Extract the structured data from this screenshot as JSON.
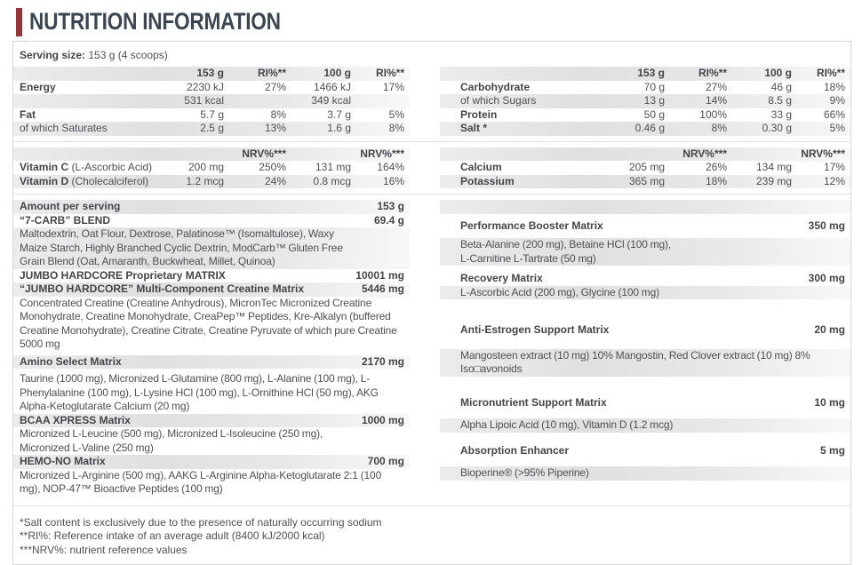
{
  "title": "NUTRITION INFORMATION",
  "accent_color": "#943338",
  "serving": {
    "label": "Serving size:",
    "value": "153 g (4 scoops)"
  },
  "facts": {
    "columns": [
      "153 g",
      "RI%**",
      "100 g",
      "RI%**"
    ],
    "left": [
      {
        "label": "Energy",
        "bold": true,
        "values": [
          "2230 kJ",
          "27%",
          "1466 kJ",
          "17%"
        ],
        "shaded": false
      },
      {
        "label": "",
        "bold": false,
        "values": [
          "531 kcal",
          "",
          "349 kcal",
          ""
        ],
        "shaded": true
      },
      {
        "label": "Fat",
        "bold": true,
        "values": [
          "5.7 g",
          "8%",
          "3.7 g",
          "5%"
        ],
        "shaded": false
      },
      {
        "label": "of which Saturates",
        "bold": false,
        "values": [
          "2.5 g",
          "13%",
          "1.6 g",
          "8%"
        ],
        "shaded": true
      }
    ],
    "right": [
      {
        "label": "Carbohydrate",
        "bold": true,
        "values": [
          "70 g",
          "27%",
          "46 g",
          "18%"
        ],
        "shaded": false
      },
      {
        "label": "of which Sugars",
        "bold": false,
        "values": [
          "13 g",
          "14%",
          "8.5 g",
          "9%"
        ],
        "shaded": true
      },
      {
        "label": "Protein",
        "bold": true,
        "values": [
          "50 g",
          "100%",
          "33 g",
          "66%"
        ],
        "shaded": false
      },
      {
        "label": "Salt *",
        "bold": true,
        "values": [
          "0.46 g",
          "8%",
          "0.30 g",
          "5%"
        ],
        "shaded": true
      }
    ]
  },
  "micros": {
    "columns": [
      "",
      "NRV%***",
      "",
      "NRV%***"
    ],
    "left": [
      {
        "label": "Vitamin C",
        "label_note": " (L-Ascorbic Acid)",
        "bold": true,
        "values": [
          "200 mg",
          "250%",
          "131 mg",
          "164%"
        ],
        "shaded": false
      },
      {
        "label": "Vitamin D",
        "label_note": " (Cholecalciferol)",
        "bold": true,
        "values": [
          "1.2 mcg",
          "24%",
          "0.8 mcg",
          "16%"
        ],
        "shaded": true
      }
    ],
    "right": [
      {
        "label": "Calcium",
        "bold": true,
        "values": [
          "205 mg",
          "26%",
          "134 mg",
          "17%"
        ],
        "shaded": false
      },
      {
        "label": "Potassium",
        "bold": true,
        "values": [
          "365 mg",
          "18%",
          "239 mg",
          "12%"
        ],
        "shaded": true
      }
    ]
  },
  "matrix_left": [
    {
      "name": "Amount per serving",
      "amount": "153 g",
      "shaded": true
    },
    {
      "name": "“7-CARB” BLEND",
      "amount": "69.4 g",
      "shaded": false
    },
    {
      "text": "Maltodextrin, Oat Flour, Dextrose, Palatinose™ (Isomaltulose), Waxy\nMaize Starch, Highly Branched Cyclic Dextrin, ModCarb™ Gluten Free\nGrain Blend (Oat, Amaranth, Buckwheat, Millet, Quinoa)",
      "shaded": true
    },
    {
      "name": "JUMBO HARDCORE Proprietary MATRIX",
      "amount": "10001 mg",
      "shaded": false
    },
    {
      "name": "“JUMBO HARDCORE” Multi-Component Creatine Matrix",
      "amount": "5446 mg",
      "shaded": true
    },
    {
      "text": "Concentrated Creatine (Creatine Anhydrous), MicronTec Micronized Creatine\nMonohydrate, Creatine Monohydrate, CreaPep™ Peptides, Kre-Alkalyn (buffered\nCreatine Monohydrate), Creatine Citrate, Creatine Pyruvate of which pure Creatine\n5000 mg",
      "shaded": false
    },
    {
      "name": "Amino Select Matrix",
      "amount": "2170 mg",
      "shaded": true,
      "gap": 4
    },
    {
      "text": "Taurine (1000 mg), Micronized L-Glutamine (800 mg), L-Alanine (100 mg), L-\nPhenylalanine (100 mg), L-Lysine HCl (100 mg), L-Ornithine HCl (50 mg), AKG\nAlpha-Ketoglutarate Calcium (20 mg)",
      "shaded": false,
      "gap": 4
    },
    {
      "name": "BCAA XPRESS Matrix",
      "amount": "1000 mg",
      "shaded": true
    },
    {
      "text": "Micronized L-Leucine (500 mg), Micronized L-Isoleucine (250 mg),\nMicronized L-Valine (250 mg)",
      "shaded": false
    },
    {
      "name": "HEMO-NO Matrix",
      "amount": "700 mg",
      "shaded": true
    },
    {
      "text": "Micronized L-Arginine (500 mg), AAKG L-Arginine Alpha-Ketoglutarate 2:1 (100\nmg), NOP-47™ Bioactive Peptides (100 mg)",
      "shaded": false
    }
  ],
  "matrix_right": [
    {
      "name": "",
      "amount": "",
      "shaded": true
    },
    {
      "name": "Performance Booster Matrix",
      "amount": "350 mg",
      "shaded": false,
      "gap": 6
    },
    {
      "text": "Beta-Alanine (200 mg), Betaine HCl (100 mg),\nL-Carnitine L-Tartrate (50 mg)",
      "shaded": true,
      "gap": 6
    },
    {
      "name": "Recovery Matrix",
      "amount": "300 mg",
      "shaded": false,
      "gap": 7
    },
    {
      "text": "L-Ascorbic Acid (200 mg), Glycine (100 mg)",
      "shaded": true
    },
    {
      "name": "Anti-Estrogen Support Matrix",
      "amount": "20 mg",
      "shaded": false,
      "gap": 27
    },
    {
      "text": "Mangosteen extract (10 mg) 10% Mangostin, Red Clover extract (10 mg) 8%\nIso□avonoids",
      "shaded": true,
      "gap": 13
    },
    {
      "name": "Micronutrient Support Matrix",
      "amount": "10 mg",
      "shaded": false,
      "gap": 22
    },
    {
      "text": "Alpha Lipoic Acid (10 mg), Vitamin D (1.2 mcg)",
      "shaded": true,
      "gap": 10
    },
    {
      "name": "Absorption Enhancer",
      "amount": "5 mg",
      "shaded": false,
      "gap": 13
    },
    {
      "text": "Bioperine® (>95% Piperine)",
      "shaded": true,
      "gap": 10
    }
  ],
  "footnotes": [
    "*Salt content is exclusively due to the presence of naturally occurring sodium",
    "**RI%: Reference intake of an average adult (8400 kJ/2000 kcal)",
    "***NRV%: nutrient reference values"
  ]
}
